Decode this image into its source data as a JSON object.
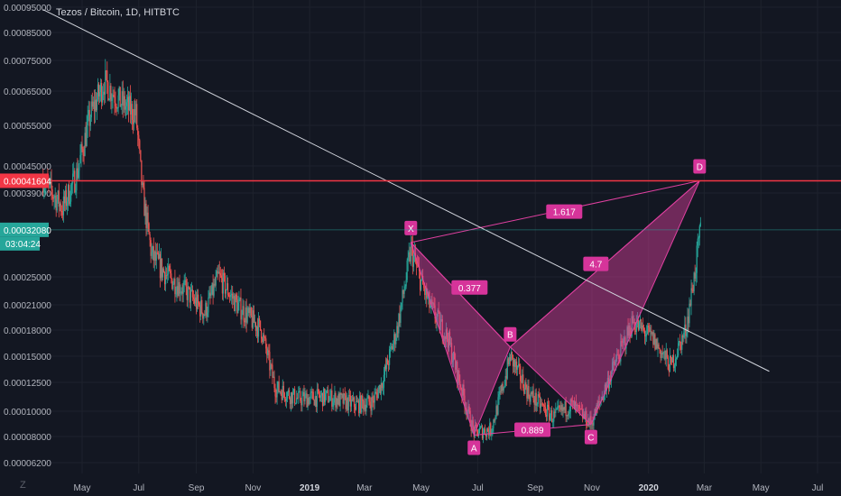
{
  "chart_data": {
    "type": "candlestick",
    "title": "Tezos / Bitcoin, 1D, HITBTC",
    "y_scale": "log",
    "ylim": [
      5.8e-05,
      9.6e-05
    ],
    "ylim_full": [
      5.8e-05,
      9.6e-05
    ],
    "y_ticks": [
      "0.00095000",
      "0.00085000",
      "0.00075000",
      "0.00065000",
      "0.00055000",
      "0.00045000",
      "0.00039000",
      "0.00025000",
      "0.00021000",
      "0.00018000",
      "0.00015000",
      "0.00012500",
      "0.00010000",
      "0.00008000",
      "0.00006200"
    ],
    "x_ticks": [
      {
        "label": "May",
        "date": "2018-05"
      },
      {
        "label": "Jul",
        "date": "2018-07"
      },
      {
        "label": "Sep",
        "date": "2018-09"
      },
      {
        "label": "Nov",
        "date": "2018-11"
      },
      {
        "label": "2019",
        "date": "2019-01",
        "bold": true
      },
      {
        "label": "Mar",
        "date": "2019-03"
      },
      {
        "label": "May",
        "date": "2019-05"
      },
      {
        "label": "Jul",
        "date": "2019-07"
      },
      {
        "label": "Sep",
        "date": "2019-09"
      },
      {
        "label": "Nov",
        "date": "2019-11"
      },
      {
        "label": "2020",
        "date": "2020-01",
        "bold": true
      },
      {
        "label": "Mar",
        "date": "2020-03"
      },
      {
        "label": "May",
        "date": "2020-05"
      },
      {
        "label": "Jul",
        "date": "2020-07"
      }
    ],
    "price_markers": [
      {
        "label": "0.00041604",
        "value": 0.00041604,
        "color": "#f23645"
      },
      {
        "label": "0.00032080",
        "value": 0.0003208,
        "color": "#26a69a",
        "countdown": "03:04:24"
      }
    ],
    "harmonic_pattern": {
      "points": [
        {
          "label": "X",
          "date": "2019-04-20",
          "value": 0.0003
        },
        {
          "label": "A",
          "date": "2019-06-27",
          "value": 8.1e-05
        },
        {
          "label": "B",
          "date": "2019-08-05",
          "value": 0.00016
        },
        {
          "label": "C",
          "date": "2019-10-31",
          "value": 8.9e-05
        },
        {
          "label": "D",
          "date": "2020-02-25",
          "value": 0.00041604
        }
      ],
      "ratios": [
        "0.377",
        "0.889",
        "1.617",
        "4.7"
      ],
      "color": "#e040a0"
    },
    "trendline": {
      "start": {
        "date": "2018-03-20",
        "value": 0.00094
      },
      "end": {
        "date": "2020-05-10",
        "value": 0.000135
      }
    },
    "series": [
      {
        "date_start": "2018-03-20",
        "date_end": "2020-02-26",
        "close_profile": [
          [
            "2018-03-20",
            0.00042
          ],
          [
            "2018-04-10",
            0.00036
          ],
          [
            "2018-04-25",
            0.00043
          ],
          [
            "2018-05-10",
            0.00058
          ],
          [
            "2018-05-25",
            0.00068
          ],
          [
            "2018-06-10",
            0.00062
          ],
          [
            "2018-06-28",
            0.00058
          ],
          [
            "2018-07-05",
            0.00039
          ],
          [
            "2018-07-15",
            0.00028
          ],
          [
            "2018-08-01",
            0.00025
          ],
          [
            "2018-08-20",
            0.00023
          ],
          [
            "2018-09-10",
            0.0002
          ],
          [
            "2018-09-25",
            0.00025
          ],
          [
            "2018-10-15",
            0.00021
          ],
          [
            "2018-11-10",
            0.00018
          ],
          [
            "2018-11-25",
            0.00012
          ],
          [
            "2018-12-20",
            0.00011
          ],
          [
            "2019-01-20",
            0.000112
          ],
          [
            "2019-02-20",
            0.000105
          ],
          [
            "2019-03-10",
            0.000108
          ],
          [
            "2019-03-20",
            0.000125
          ],
          [
            "2019-04-05",
            0.00018
          ],
          [
            "2019-04-20",
            0.00029
          ],
          [
            "2019-05-10",
            0.00021
          ],
          [
            "2019-05-30",
            0.00017
          ],
          [
            "2019-06-15",
            0.000115
          ],
          [
            "2019-06-27",
            8.3e-05
          ],
          [
            "2019-07-15",
            8.5e-05
          ],
          [
            "2019-08-05",
            0.00015
          ],
          [
            "2019-08-25",
            0.000115
          ],
          [
            "2019-09-20",
            9.5e-05
          ],
          [
            "2019-10-10",
            0.000105
          ],
          [
            "2019-10-31",
            9e-05
          ],
          [
            "2019-11-20",
            0.00013
          ],
          [
            "2019-12-15",
            0.00019
          ],
          [
            "2020-01-05",
            0.00017
          ],
          [
            "2020-01-25",
            0.00014
          ],
          [
            "2020-02-10",
            0.00018
          ],
          [
            "2020-02-26",
            0.00032
          ]
        ]
      }
    ]
  },
  "ui": {
    "title": "Tezos / Bitcoin, 1D, HITBTC",
    "timezone_icon": "Z"
  }
}
